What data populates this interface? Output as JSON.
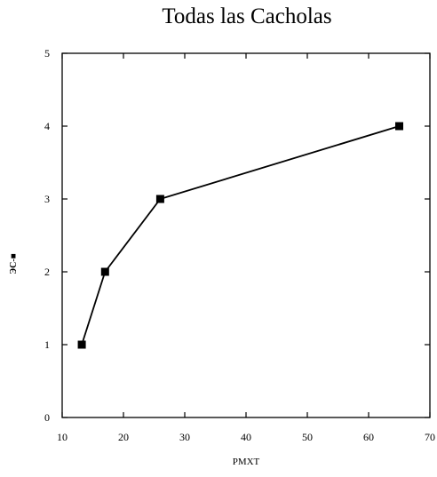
{
  "chart_data": {
    "type": "line",
    "title": "Todas las Cacholas",
    "xlabel": "PMXT",
    "ylabel": "ЭС-■",
    "xlim": [
      10,
      70
    ],
    "ylim": [
      0,
      5
    ],
    "xticks": [
      10,
      20,
      30,
      40,
      50,
      60,
      70
    ],
    "yticks": [
      0,
      1,
      2,
      3,
      4,
      5
    ],
    "ytick_labels": [
      "0",
      "1",
      "2",
      "3",
      "4",
      "5"
    ],
    "grid": false,
    "marker": "square",
    "color": "#000000",
    "series": [
      {
        "x": [
          13.2,
          17,
          26,
          65
        ],
        "y": [
          1,
          2,
          3,
          4
        ]
      }
    ]
  }
}
